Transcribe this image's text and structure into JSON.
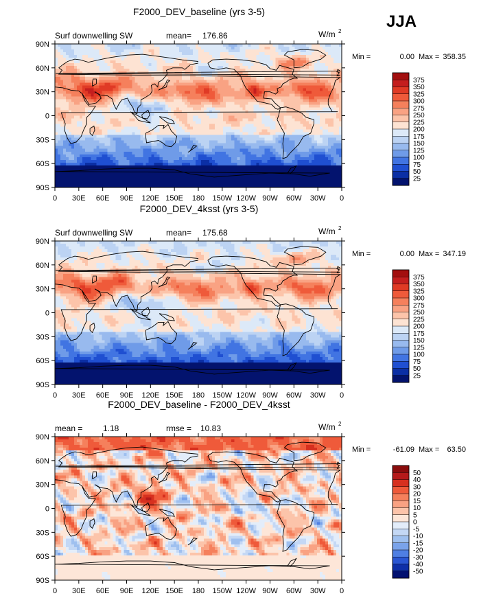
{
  "season_label": "JJA",
  "units_text": "W/m",
  "units_exp": "2",
  "min_label": "Min =",
  "max_label": "Max =",
  "chart_data": [
    {
      "type": "heatmap",
      "title": "F2000_DEV_baseline (yrs 3-5)",
      "left_label": "Surf downwelling SW",
      "stat_label": "mean=",
      "stat_value": "176.86",
      "min_value": "0.00",
      "max_value": "358.35",
      "field": "absolute",
      "x_ticks": [
        "0",
        "30E",
        "60E",
        "90E",
        "120E",
        "150E",
        "180",
        "150W",
        "120W",
        "90W",
        "60W",
        "30W",
        "0"
      ],
      "y_ticks": [
        "90N",
        "60N",
        "30N",
        "0",
        "30S",
        "60S",
        "90S"
      ],
      "colorbar_levels": [
        "375",
        "350",
        "325",
        "300",
        "275",
        "250",
        "225",
        "200",
        "175",
        "150",
        "125",
        "100",
        "75",
        "50",
        "25"
      ],
      "colorbar_colors": [
        "#a30f0f",
        "#c41e1e",
        "#e03a25",
        "#ef5a3a",
        "#f5805c",
        "#f9a283",
        "#fcc4aa",
        "#fde3d3",
        "#dce9f8",
        "#bcd3f3",
        "#98baee",
        "#6f9be8",
        "#4174e2",
        "#1f4fd1",
        "#0b2fa5",
        "#03136e"
      ]
    },
    {
      "type": "heatmap",
      "title": "F2000_DEV_4ksst (yrs 3-5)",
      "left_label": "Surf downwelling SW",
      "stat_label": "mean=",
      "stat_value": "175.68",
      "min_value": "0.00",
      "max_value": "347.19",
      "field": "absolute",
      "x_ticks": [
        "0",
        "30E",
        "60E",
        "90E",
        "120E",
        "150E",
        "180",
        "150W",
        "120W",
        "90W",
        "60W",
        "30W",
        "0"
      ],
      "y_ticks": [
        "90N",
        "60N",
        "30N",
        "0",
        "30S",
        "60S",
        "90S"
      ],
      "colorbar_levels": [
        "375",
        "350",
        "325",
        "300",
        "275",
        "250",
        "225",
        "200",
        "175",
        "150",
        "125",
        "100",
        "75",
        "50",
        "25"
      ],
      "colorbar_colors": [
        "#a30f0f",
        "#c41e1e",
        "#e03a25",
        "#ef5a3a",
        "#f5805c",
        "#f9a283",
        "#fcc4aa",
        "#fde3d3",
        "#dce9f8",
        "#bcd3f3",
        "#98baee",
        "#6f9be8",
        "#4174e2",
        "#1f4fd1",
        "#0b2fa5",
        "#03136e"
      ]
    },
    {
      "type": "heatmap",
      "title": "F2000_DEV_baseline - F2000_DEV_4ksst",
      "left_label": "mean =",
      "left_value": "1.18",
      "stat_label": "rmse =",
      "stat_value": "10.83",
      "min_value": "-61.09",
      "max_value": "63.50",
      "field": "difference",
      "x_ticks": [
        "0",
        "30E",
        "60E",
        "90E",
        "120E",
        "150E",
        "180",
        "150W",
        "120W",
        "90W",
        "60W",
        "30W",
        "0"
      ],
      "y_ticks": [
        "90N",
        "60N",
        "30N",
        "0",
        "30S",
        "60S",
        "90S"
      ],
      "colorbar_levels": [
        "50",
        "40",
        "30",
        "20",
        "15",
        "10",
        "5",
        "0",
        "-5",
        "-10",
        "-15",
        "-20",
        "-30",
        "-40",
        "-50"
      ],
      "colorbar_colors": [
        "#8a0c0c",
        "#b51a1a",
        "#d7301f",
        "#ef5a3a",
        "#f5805c",
        "#f9a283",
        "#fcc4aa",
        "#fde6d8",
        "#e3edfa",
        "#c4d8f5",
        "#9fc0ef",
        "#7aa3ea",
        "#4f7fe3",
        "#2a56d3",
        "#0e2fa8",
        "#021170"
      ]
    }
  ]
}
